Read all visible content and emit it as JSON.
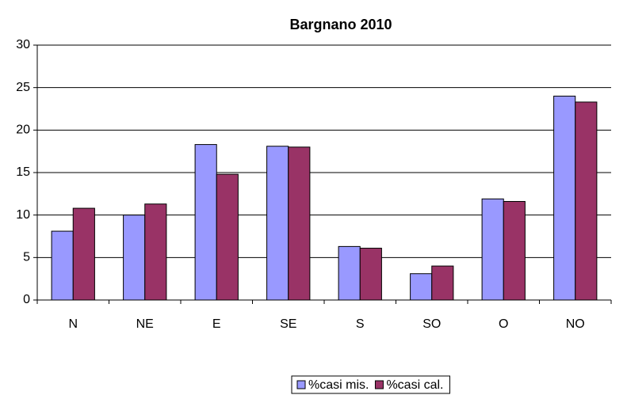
{
  "chart_data": {
    "type": "bar",
    "title": "Bargnano 2010",
    "categories": [
      "N",
      "NE",
      "E",
      "SE",
      "S",
      "SO",
      "O",
      "NO"
    ],
    "series": [
      {
        "name": "%casi mis.",
        "color": "#9999ff",
        "values": [
          8.1,
          10.0,
          18.3,
          18.1,
          6.3,
          3.1,
          11.9,
          24.0
        ]
      },
      {
        "name": "%casi cal.",
        "color": "#993366",
        "values": [
          10.8,
          11.3,
          14.8,
          18.0,
          6.1,
          4.0,
          11.6,
          23.3
        ]
      }
    ],
    "ylim": [
      0,
      30
    ],
    "yticks": [
      0,
      5,
      10,
      15,
      20,
      25,
      30
    ],
    "grid": true,
    "legend": "bottom"
  }
}
